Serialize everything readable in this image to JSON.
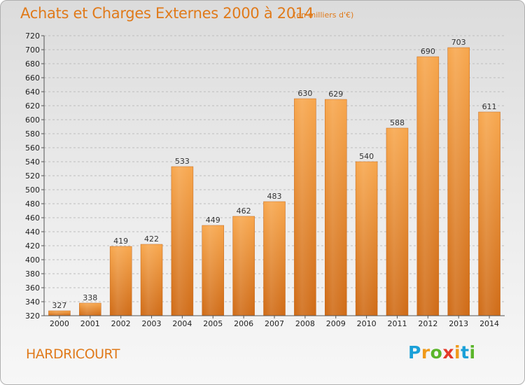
{
  "header": {
    "title": "Achats et Charges Externes 2000 à 2014",
    "subtitle": "(en milliers d'€)"
  },
  "footer": {
    "place": "HARDRICOURT",
    "logo_parts": [
      "P",
      "r",
      "o",
      "x",
      "i",
      "t",
      "i"
    ]
  },
  "colors": {
    "accent": "#e07a1a",
    "bar_light": "#f7a64c",
    "bar_dark": "#cf6a15",
    "gridline": "#bdbdbd"
  },
  "chart_data": {
    "type": "bar",
    "title": "Achats et Charges Externes 2000 à 2014",
    "subtitle": "(en milliers d'€)",
    "categories": [
      "2000",
      "2001",
      "2002",
      "2003",
      "2004",
      "2005",
      "2006",
      "2007",
      "2008",
      "2009",
      "2010",
      "2011",
      "2012",
      "2013",
      "2014"
    ],
    "values": [
      327,
      338,
      419,
      422,
      533,
      449,
      462,
      483,
      630,
      629,
      540,
      588,
      690,
      703,
      611
    ],
    "ylim": [
      320,
      720
    ],
    "ytick_step": 20,
    "grid": true,
    "xlabel": "",
    "ylabel": ""
  }
}
